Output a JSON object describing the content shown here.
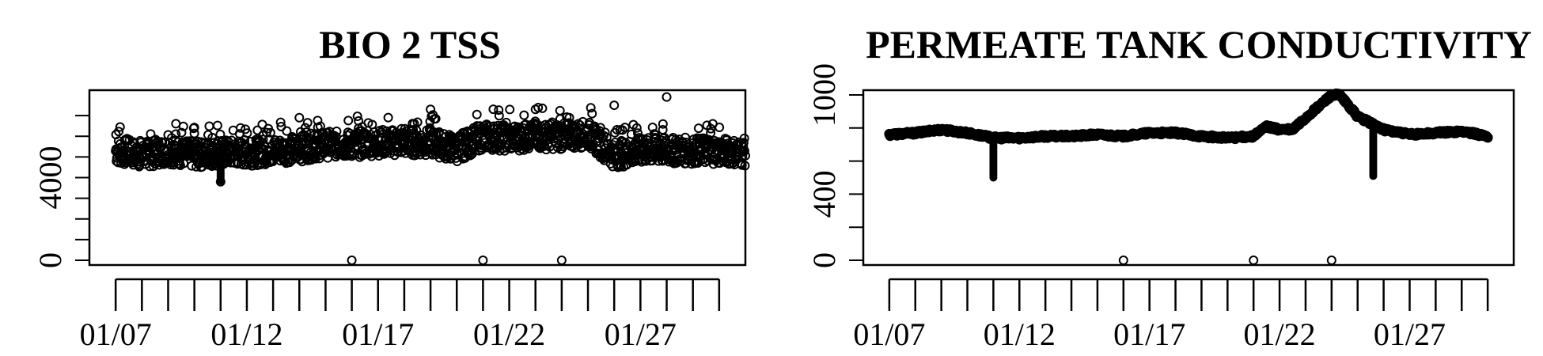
{
  "chart_data": [
    {
      "type": "scatter",
      "title": "BIO 2 TSS",
      "xlabel": "",
      "ylabel": "",
      "x_tick_labels": [
        "01/07",
        "01/12",
        "01/17",
        "01/22",
        "01/27"
      ],
      "x_tick_dates": [
        "2000-01-07",
        "2000-01-12",
        "2000-01-17",
        "2000-01-22",
        "2000-01-27"
      ],
      "y_ticks": [
        0,
        4000
      ],
      "y_minor_ticks": [
        0,
        1000,
        2000,
        3000,
        4000,
        5000,
        6000,
        7000
      ],
      "xlim": [
        "2000-01-06",
        "2000-01-31"
      ],
      "ylim": [
        0,
        8000
      ],
      "grid": false,
      "legend": "none",
      "series": [
        {
          "x": [
            "2000-01-07",
            "2000-01-08",
            "2000-01-09",
            "2000-01-10",
            "2000-01-11",
            "2000-01-12",
            "2000-01-13",
            "2000-01-14",
            "2000-01-15",
            "2000-01-16",
            "2000-01-17",
            "2000-01-18",
            "2000-01-19",
            "2000-01-20",
            "2000-01-21",
            "2000-01-22",
            "2000-01-23",
            "2000-01-24",
            "2000-01-25",
            "2000-01-26",
            "2000-01-27",
            "2000-01-28",
            "2000-01-29",
            "2000-01-30",
            "2000-01-31"
          ],
          "y": [
            5300,
            5100,
            5300,
            5100,
            5200,
            5200,
            5300,
            5400,
            5600,
            5600,
            5700,
            5700,
            5700,
            5400,
            6000,
            5900,
            6000,
            6000,
            6100,
            5100,
            5300,
            5300,
            5300,
            5300,
            5200
          ]
        }
      ],
      "outliers": [
        {
          "x": "2000-01-16",
          "y": 0
        },
        {
          "x": "2000-01-21",
          "y": 0
        },
        {
          "x": "2000-01-24",
          "y": 0
        },
        {
          "x": "2000-01-28",
          "y": 7900
        },
        {
          "x": "2000-01-26",
          "y": 7500
        },
        {
          "x": "2000-01-19",
          "y": 7300
        },
        {
          "x": "2000-01-23",
          "y": 7300
        },
        {
          "x": "2000-01-14",
          "y": 6900
        },
        {
          "x": "2000-01-11",
          "y": 3800
        }
      ],
      "color": "#000000"
    },
    {
      "type": "scatter",
      "title": "PERMEATE TANK CONDUCTIVITY",
      "xlabel": "",
      "ylabel": "",
      "x_tick_labels": [
        "01/07",
        "01/12",
        "01/17",
        "01/22",
        "01/27"
      ],
      "x_tick_dates": [
        "2000-01-07",
        "2000-01-12",
        "2000-01-17",
        "2000-01-22",
        "2000-01-27"
      ],
      "y_ticks": [
        0,
        400,
        1000
      ],
      "y_minor_ticks": [
        0,
        200,
        400,
        600,
        800,
        1000
      ],
      "xlim": [
        "2000-01-06",
        "2000-01-31"
      ],
      "ylim": [
        0,
        1000
      ],
      "grid": false,
      "legend": "none",
      "series": [
        {
          "x": [
            "2000-01-07",
            "2000-01-08",
            "2000-01-09",
            "2000-01-10",
            "2000-01-11",
            "2000-01-12",
            "2000-01-13",
            "2000-01-14",
            "2000-01-15",
            "2000-01-16",
            "2000-01-17",
            "2000-01-18",
            "2000-01-19",
            "2000-01-20",
            "2000-01-21",
            "2000-01-21.5",
            "2000-01-22",
            "2000-01-22.5",
            "2000-01-24",
            "2000-01-24.3",
            "2000-01-25",
            "2000-01-26",
            "2000-01-27",
            "2000-01-28",
            "2000-01-29",
            "2000-01-30"
          ],
          "y": [
            760,
            770,
            790,
            770,
            740,
            740,
            750,
            750,
            760,
            750,
            770,
            770,
            750,
            740,
            750,
            810,
            790,
            790,
            1000,
            1000,
            870,
            790,
            760,
            770,
            780,
            750
          ]
        }
      ],
      "spikes": [
        {
          "x": "2000-01-11",
          "y": 490
        },
        {
          "x": "2000-01-25.6",
          "y": 500
        }
      ],
      "outliers": [
        {
          "x": "2000-01-16",
          "y": 0
        },
        {
          "x": "2000-01-21",
          "y": 0
        },
        {
          "x": "2000-01-24",
          "y": 0
        }
      ],
      "color": "#000000"
    }
  ]
}
